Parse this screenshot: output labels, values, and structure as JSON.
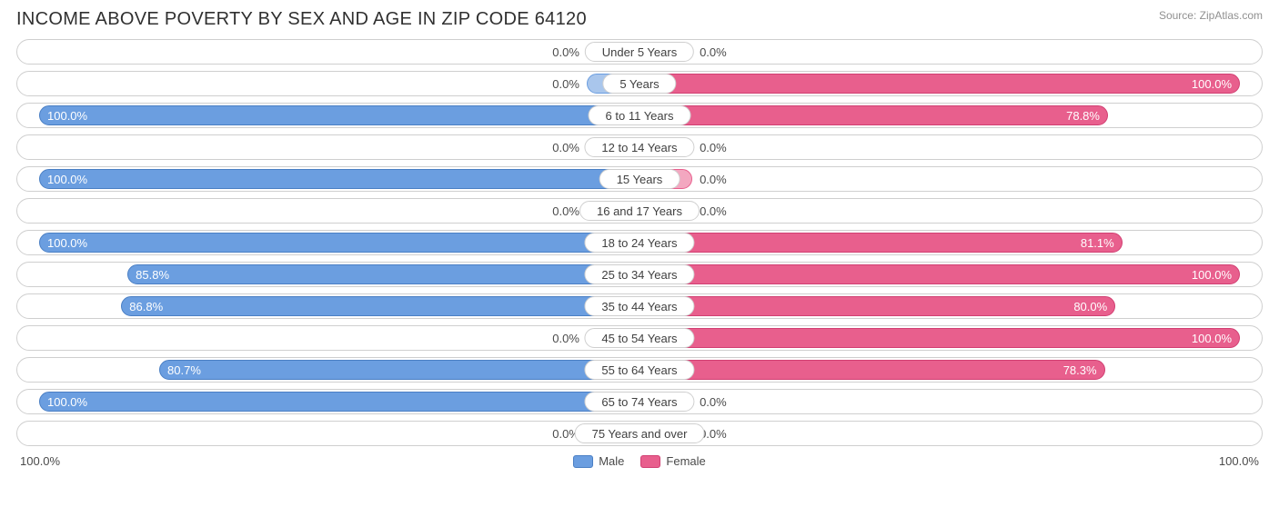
{
  "title": "INCOME ABOVE POVERTY BY SEX AND AGE IN ZIP CODE 64120",
  "source": "Source: ZipAtlas.com",
  "colors": {
    "male_fill": "#6b9ee0",
    "male_border": "#4a7fc4",
    "female_fill": "#e85f8d",
    "female_border": "#d13f72",
    "min_male_fill": "#a9c6ec",
    "min_female_fill": "#f3a7c0",
    "text_dark": "#4a4a4a",
    "text_light": "#ffffff"
  },
  "min_bar_pct": 12,
  "axis_left": "100.0%",
  "axis_right": "100.0%",
  "legend": {
    "male": "Male",
    "female": "Female"
  },
  "rows": [
    {
      "age": "Under 5 Years",
      "male": 0.0,
      "female": 0.0
    },
    {
      "age": "5 Years",
      "male": 0.0,
      "female": 100.0
    },
    {
      "age": "6 to 11 Years",
      "male": 100.0,
      "female": 78.8
    },
    {
      "age": "12 to 14 Years",
      "male": 0.0,
      "female": 0.0
    },
    {
      "age": "15 Years",
      "male": 100.0,
      "female": 0.0
    },
    {
      "age": "16 and 17 Years",
      "male": 0.0,
      "female": 0.0
    },
    {
      "age": "18 to 24 Years",
      "male": 100.0,
      "female": 81.1
    },
    {
      "age": "25 to 34 Years",
      "male": 85.8,
      "female": 100.0
    },
    {
      "age": "35 to 44 Years",
      "male": 86.8,
      "female": 80.0
    },
    {
      "age": "45 to 54 Years",
      "male": 0.0,
      "female": 100.0
    },
    {
      "age": "55 to 64 Years",
      "male": 80.7,
      "female": 78.3
    },
    {
      "age": "65 to 74 Years",
      "male": 100.0,
      "female": 0.0
    },
    {
      "age": "75 Years and over",
      "male": 0.0,
      "female": 0.0
    }
  ]
}
